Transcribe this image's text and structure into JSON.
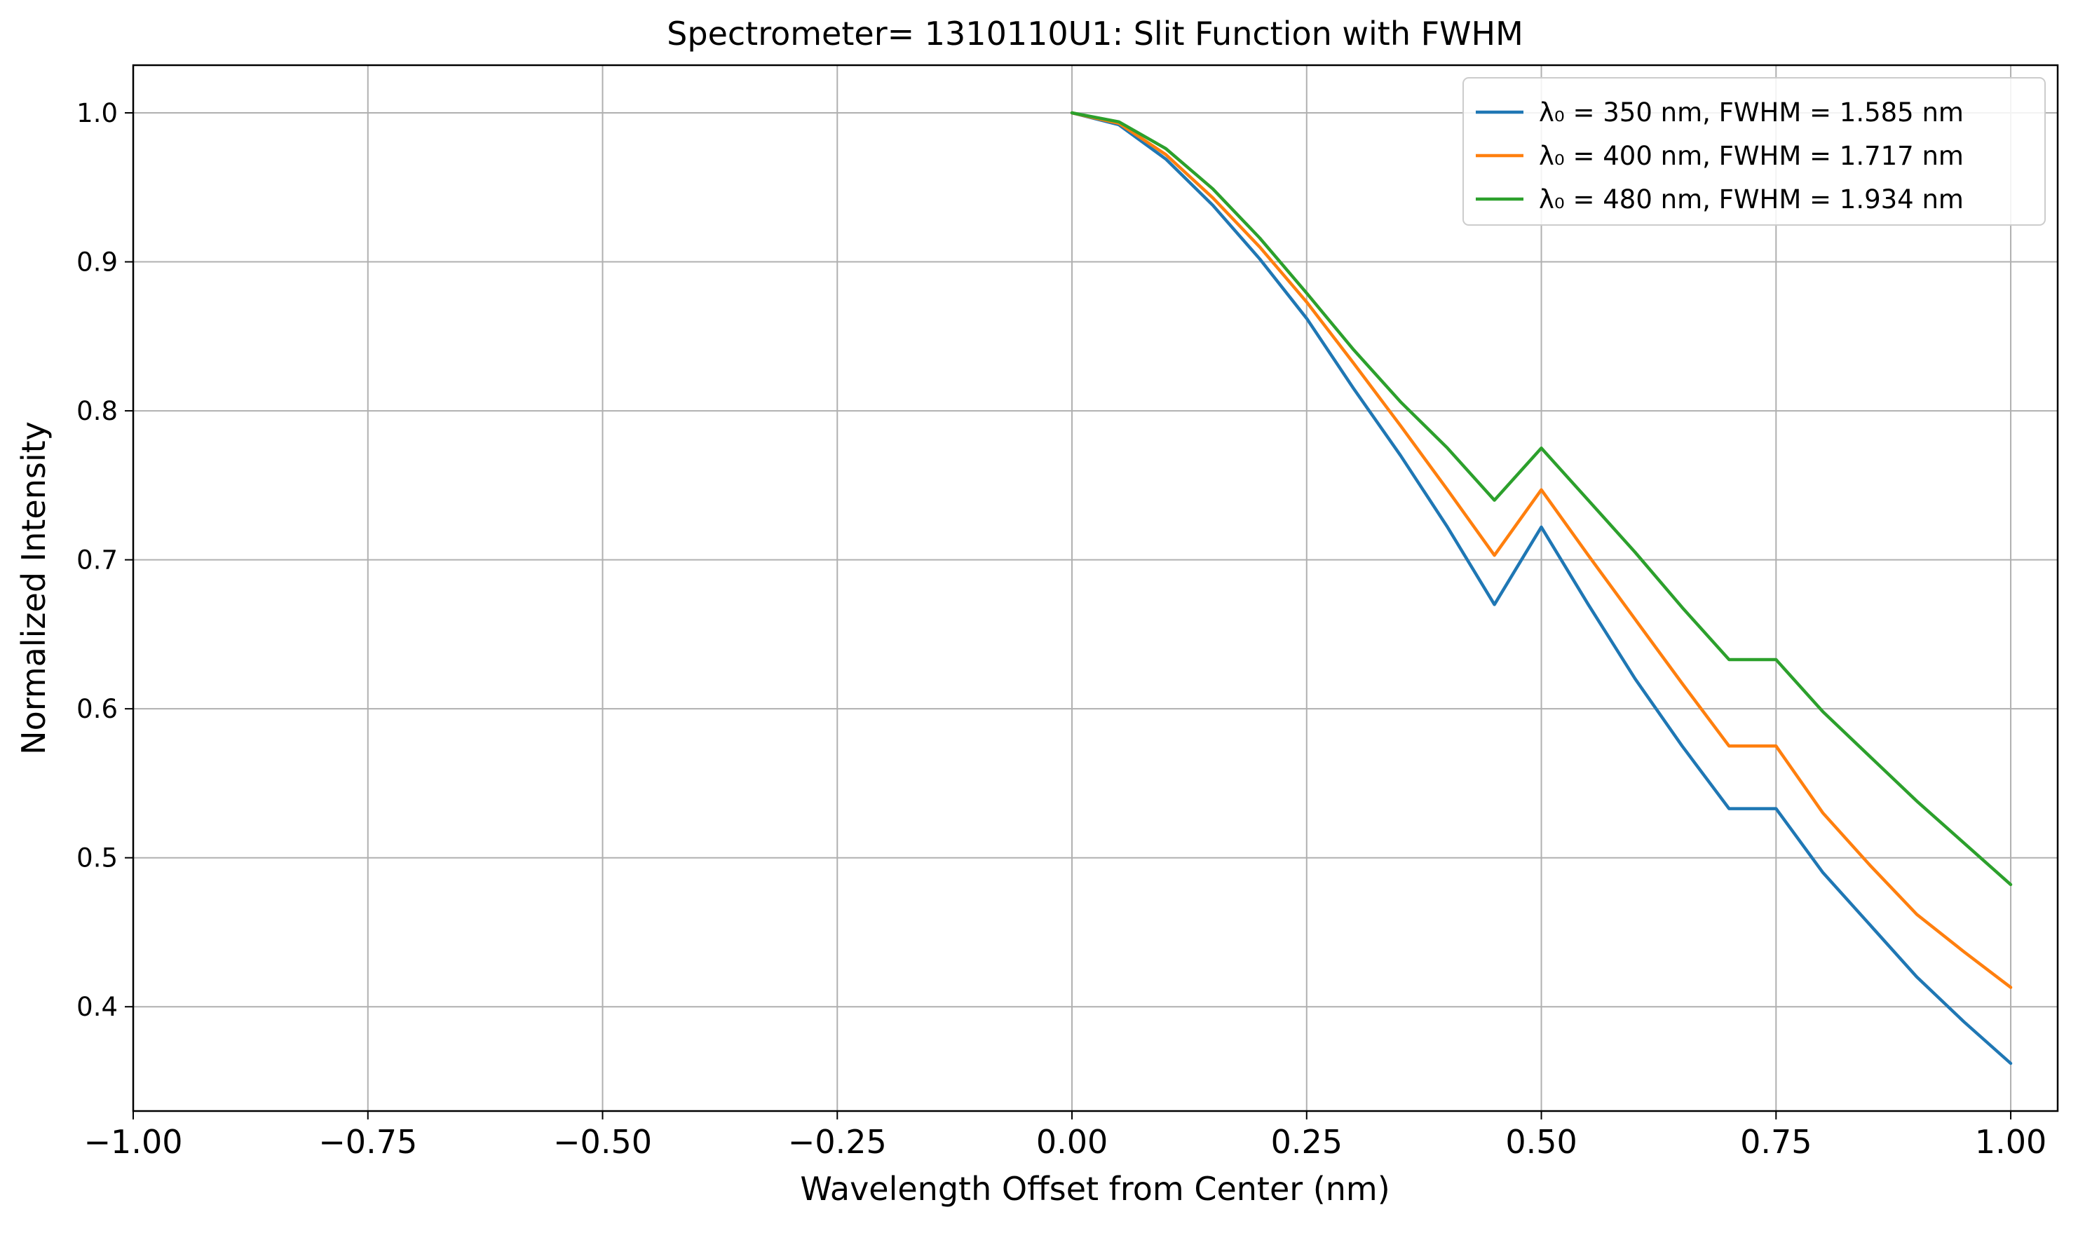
{
  "chart_data": {
    "type": "line",
    "title": "Spectrometer= 1310110U1: Slit Function with FWHM",
    "xlabel": "Wavelength Offset from Center (nm)",
    "ylabel": "Normalized Intensity",
    "xlim": [
      -1.0,
      1.05
    ],
    "ylim": [
      0.33,
      1.032
    ],
    "x_ticks": [
      -1.0,
      -0.75,
      -0.5,
      -0.25,
      0.0,
      0.25,
      0.5,
      0.75,
      1.0
    ],
    "x_tick_labels": [
      "−1.00",
      "−0.75",
      "−0.50",
      "−0.25",
      "0.00",
      "0.25",
      "0.50",
      "0.75",
      "1.00"
    ],
    "y_ticks": [
      0.4,
      0.5,
      0.6,
      0.7,
      0.8,
      0.9,
      1.0
    ],
    "y_tick_labels": [
      "0.4",
      "0.5",
      "0.6",
      "0.7",
      "0.8",
      "0.9",
      "1.0"
    ],
    "grid": true,
    "legend_position": "top-right",
    "x": [
      0.0,
      0.05,
      0.1,
      0.15,
      0.2,
      0.25,
      0.3,
      0.35,
      0.4,
      0.45,
      0.5,
      0.55,
      0.6,
      0.65,
      0.7,
      0.75,
      0.8,
      0.85,
      0.9,
      0.95,
      1.0
    ],
    "series": [
      {
        "name": "λ₀ = 350 nm, FWHM = 1.585 nm",
        "color": "#1f77b4",
        "values": [
          1.0,
          0.992,
          0.969,
          0.938,
          0.902,
          0.862,
          0.815,
          0.77,
          0.722,
          0.67,
          0.722,
          0.67,
          0.62,
          0.575,
          0.533,
          0.533,
          0.49,
          0.455,
          0.42,
          0.39,
          0.362
        ]
      },
      {
        "name": "λ₀ = 400 nm, FWHM = 1.717 nm",
        "color": "#ff7f0e",
        "values": [
          1.0,
          0.993,
          0.972,
          0.943,
          0.91,
          0.873,
          0.832,
          0.79,
          0.747,
          0.703,
          0.747,
          0.703,
          0.66,
          0.617,
          0.575,
          0.575,
          0.53,
          0.495,
          0.462,
          0.437,
          0.413
        ]
      },
      {
        "name": "λ₀ = 480 nm, FWHM = 1.934 nm",
        "color": "#2ca02c",
        "values": [
          1.0,
          0.994,
          0.976,
          0.949,
          0.916,
          0.879,
          0.841,
          0.806,
          0.775,
          0.74,
          0.775,
          0.74,
          0.705,
          0.668,
          0.633,
          0.633,
          0.598,
          0.568,
          0.538,
          0.51,
          0.482
        ]
      }
    ]
  }
}
